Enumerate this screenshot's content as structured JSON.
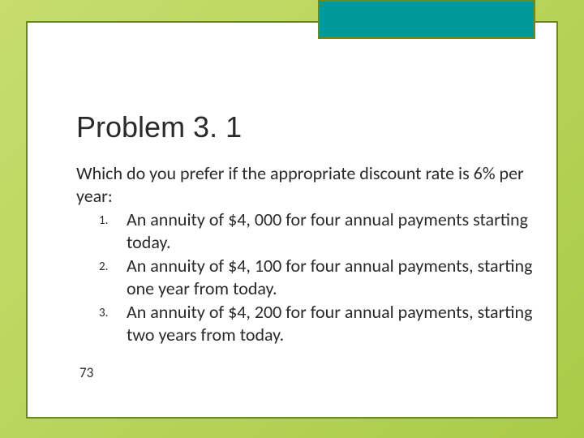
{
  "slide": {
    "title": "Problem 3. 1",
    "intro": "Which do you prefer if the appropriate discount rate is 6% per year:",
    "items": [
      "An annuity of $4, 000 for four annual payments starting today.",
      "An annuity of $4, 100 for four annual payments, starting one year from today.",
      "An annuity of $4, 200 for four annual payments, starting two years from today."
    ],
    "page_number": "73"
  },
  "style": {
    "bg_gradient_start": "#c6dd6e",
    "bg_gradient_end": "#a9cb47",
    "panel_bg": "#ffffff",
    "border_color": "#6a8a1f",
    "accent_color": "#009999",
    "text_color": "#2a2a2a",
    "title_fontsize": 36,
    "body_fontsize": 22,
    "marker_fontsize": 15
  }
}
